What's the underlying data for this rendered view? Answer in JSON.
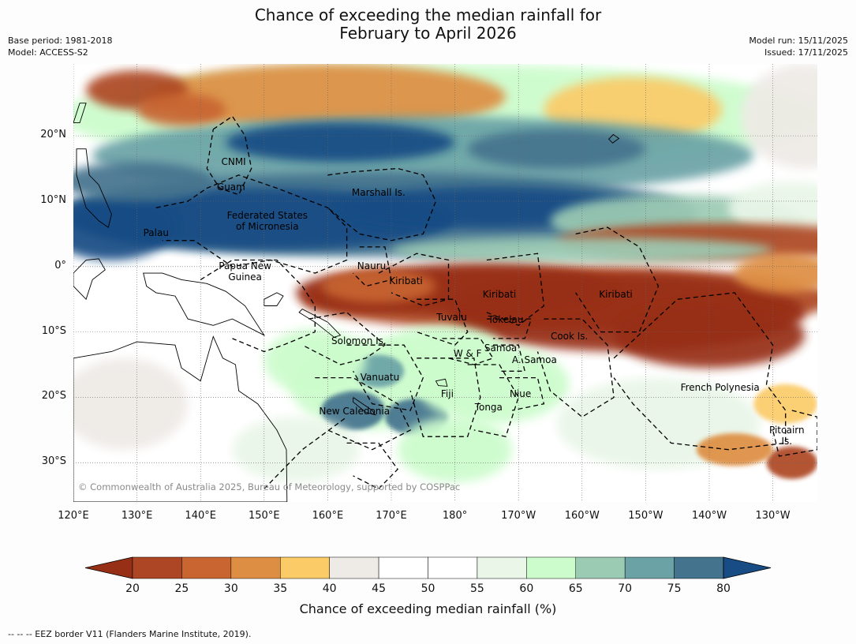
{
  "title": {
    "line1": "Chance of exceeding the median rainfall for",
    "line2": "February to April 2026"
  },
  "meta": {
    "base_period": "Base period: 1981-2018",
    "model": "Model: ACCESS-S2",
    "model_run": "Model run: 15/11/2025",
    "issued": "Issued: 17/11/2025"
  },
  "copyright": "© Commonwealth of Australia 2025, Bureau of Meteorology, supported by COSPPac",
  "axes": {
    "lat_labels": [
      "20°N",
      "10°N",
      "0°",
      "10°S",
      "20°S",
      "30°S"
    ],
    "lat_values": [
      20,
      10,
      0,
      -10,
      -20,
      -30
    ],
    "lon_labels": [
      "120°E",
      "130°E",
      "140°E",
      "150°E",
      "160°E",
      "170°E",
      "180°",
      "170°W",
      "160°W",
      "150°W",
      "140°W",
      "130°W"
    ],
    "lon_values": [
      120,
      130,
      140,
      150,
      160,
      170,
      180,
      190,
      200,
      210,
      220,
      230
    ],
    "lon_range": [
      120,
      237
    ],
    "lat_range": [
      -36,
      31
    ]
  },
  "regions": [
    {
      "name": "CNMI",
      "lon": 145.2,
      "lat": 16.0
    },
    {
      "name": "Guam",
      "lon": 144.8,
      "lat": 12.2
    },
    {
      "name": "Marshall Is.",
      "lon": 168.0,
      "lat": 11.3
    },
    {
      "name": "Federated States\nof Micronesia",
      "lon": 150.5,
      "lat": 7.0
    },
    {
      "name": "Palau",
      "lon": 133.0,
      "lat": 5.2
    },
    {
      "name": "Nauru",
      "lon": 166.9,
      "lat": 0.1
    },
    {
      "name": "Papua New\nGuinea",
      "lon": 147.0,
      "lat": -0.7
    },
    {
      "name": "Kiribati",
      "lon": 172.3,
      "lat": -2.2
    },
    {
      "name": "Kiribati",
      "lon": 187.0,
      "lat": -4.2
    },
    {
      "name": "Kiribati",
      "lon": 205.3,
      "lat": -4.2
    },
    {
      "name": "Tuvalu",
      "lon": 179.5,
      "lat": -7.8
    },
    {
      "name": "Tokelau",
      "lon": 188.0,
      "lat": -8.1
    },
    {
      "name": "Cook Is.",
      "lon": 198.0,
      "lat": -10.6
    },
    {
      "name": "Solomon Is.",
      "lon": 164.9,
      "lat": -11.4
    },
    {
      "name": "Samoa",
      "lon": 187.2,
      "lat": -12.4
    },
    {
      "name": "W & F",
      "lon": 182.0,
      "lat": -13.3
    },
    {
      "name": "A. Samoa",
      "lon": 192.5,
      "lat": -14.3
    },
    {
      "name": "Vanuatu",
      "lon": 168.2,
      "lat": -16.9
    },
    {
      "name": "Fiji",
      "lon": 178.8,
      "lat": -19.5
    },
    {
      "name": "Niue",
      "lon": 190.3,
      "lat": -19.5
    },
    {
      "name": "Tonga",
      "lon": 185.3,
      "lat": -21.5
    },
    {
      "name": "French Polynesia",
      "lon": 221.7,
      "lat": -18.5
    },
    {
      "name": "New Caledonia",
      "lon": 164.2,
      "lat": -22.1
    },
    {
      "name": "Pitcairn\nIs.",
      "lon": 232.2,
      "lat": -25.9
    }
  ],
  "chart_data": {
    "type": "heatmap",
    "variable": "Chance of exceeding median rainfall (%)",
    "period": "February to April 2026",
    "levels": [
      20,
      25,
      30,
      35,
      40,
      45,
      50,
      55,
      60,
      65,
      70,
      75,
      80
    ],
    "colors": [
      "#972f17",
      "#ad4624",
      "#c86530",
      "#de8e42",
      "#fbcb67",
      "#eeeae6",
      "#ffffff",
      "#ffffff",
      "#e9f6e8",
      "#ccfccc",
      "#9ccbb4",
      "#6ba2a6",
      "#44738e",
      "#174c84"
    ],
    "extend": "both",
    "features": [
      {
        "label": "equatorial dry tongue",
        "lon_range": [
          155,
          235
        ],
        "lat_center": -3,
        "peak_value": 17
      },
      {
        "label": "northern wet band",
        "lon_range": [
          120,
          205
        ],
        "lat_center": 7,
        "peak_value": 85
      },
      {
        "label": "subtropical north wet band",
        "lon_range": [
          125,
          200
        ],
        "lat_center": 16,
        "peak_value": 80
      },
      {
        "label": "SW Pacific wet patches",
        "lon_range": [
          155,
          190
        ],
        "lat_center": -18,
        "peak_value": 73
      }
    ]
  },
  "colorbar": {
    "ticks": [
      "20",
      "25",
      "30",
      "35",
      "40",
      "45",
      "50",
      "55",
      "60",
      "65",
      "70",
      "75",
      "80"
    ],
    "label": "Chance of exceeding median rainfall (%)"
  },
  "footnote": "--  --  -- EEZ border V11 (Flanders Marine Institute, 2019)."
}
